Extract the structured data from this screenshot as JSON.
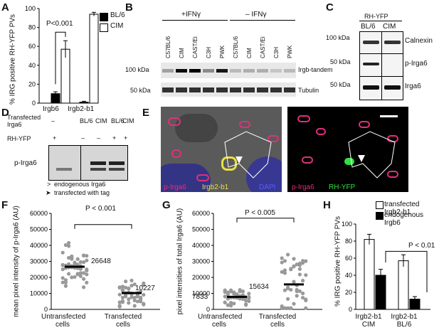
{
  "panels": {
    "A": {
      "label": "A",
      "ylabel": "% IRG positive RH-YFP PVs",
      "ticks": [
        "0",
        "20",
        "40",
        "60",
        "80",
        "100"
      ],
      "xcats": [
        "Irgb6",
        "Irgb2-b1"
      ],
      "legend": [
        "BL/6",
        "CIM"
      ],
      "sig": "P<0.001"
    },
    "B": {
      "label": "B",
      "cond1": "+IFNγ",
      "cond2": "– IFNγ",
      "lanes": [
        "C57BL/6",
        "CIM",
        "CAST/Ei",
        "C3H",
        "PWK",
        "C57BL/6",
        "CIM",
        "CAST/Ei",
        "C3H",
        "PWK"
      ],
      "mw1": "100 kDa",
      "mw2": "50 kDa",
      "blot1": "Irgb-tandem",
      "blot2": "Tubulin"
    },
    "C": {
      "label": "C",
      "header": "RH-YFP",
      "lanes": [
        "BL/6",
        "CIM"
      ],
      "mw": [
        "100 kDa",
        "50 kDa",
        "50 kDa"
      ],
      "blots": [
        "Calnexin",
        "p-Irga6",
        "Irga6"
      ]
    },
    "D": {
      "label": "D",
      "row1": "Transfected Irga6",
      "row1_vals": [
        "–",
        "BL/6",
        "CIM",
        "BL/6",
        "CIM"
      ],
      "row2": "RH-YFP",
      "row2_vals": [
        "+",
        "–",
        "–",
        "+",
        "+"
      ],
      "blot": "p-Irga6",
      "legend1": "endogenous Irga6",
      "legend2": "transfected with tag",
      "open_arrow": ">",
      "filled_arrow": "➤"
    },
    "E": {
      "label": "E",
      "left_labels": [
        "p-Irga6",
        "Irgb2-b1",
        "DAPI"
      ],
      "right_labels": [
        "p-Irga6",
        "RH-YFP"
      ]
    },
    "F": {
      "label": "F",
      "ylabel": "mean pixel intensity of p-Irga6 (AU)",
      "ticks": [
        "0",
        "10000",
        "20000",
        "30000",
        "40000",
        "50000",
        "60000"
      ],
      "groups": [
        "Untransfected cells",
        "Transfected cells"
      ],
      "medians": [
        "26648",
        "10227"
      ],
      "sig": "P < 0.001"
    },
    "G": {
      "label": "G",
      "ylabel": "pixel intensities of total Irga6 (AU)",
      "ticks": [
        "0",
        "10000",
        "20000",
        "30000",
        "40000",
        "50000",
        "60000"
      ],
      "groups": [
        "Untransfected cells",
        "Transfected cells"
      ],
      "medians": [
        "7833",
        "15634"
      ],
      "sig": "P < 0.005"
    },
    "H": {
      "label": "H",
      "ylabel": "% IRG positive RH-YFP PVs",
      "ticks": [
        "0",
        "20",
        "40",
        "60",
        "80",
        "100"
      ],
      "legend": [
        "transfected Irgb2-b1",
        "endogenous Irgb6"
      ],
      "groups": [
        "Irgb2-b1 CIM",
        "Irgb2-b1 BL/6"
      ],
      "sig": "P < 0.01"
    }
  },
  "chart_data": [
    {
      "type": "bar",
      "panel": "A",
      "categories": [
        "Irgb6",
        "Irgb2-b1"
      ],
      "series": [
        {
          "name": "BL/6",
          "values": [
            10,
            1
          ],
          "color": "#000000"
        },
        {
          "name": "CIM",
          "values": [
            57,
            94
          ],
          "color": "#ffffff"
        }
      ],
      "errors": [
        [
          2,
          1
        ],
        [
          9,
          2
        ]
      ],
      "ylim": [
        0,
        100
      ]
    },
    {
      "type": "scatter",
      "panel": "F",
      "categories": [
        "Untransfected cells",
        "Transfected cells"
      ],
      "medians": [
        26648,
        10227
      ],
      "ylim": [
        0,
        60000
      ]
    },
    {
      "type": "scatter",
      "panel": "G",
      "categories": [
        "Untransfected cells",
        "Transfected cells"
      ],
      "medians": [
        7833,
        15634
      ],
      "ylim": [
        0,
        60000
      ]
    },
    {
      "type": "bar",
      "panel": "H",
      "categories": [
        "Irgb2-b1 CIM",
        "Irgb2-b1 BL/6"
      ],
      "series": [
        {
          "name": "transfected Irgb2-b1",
          "values": [
            82,
            57
          ],
          "color": "#ffffff"
        },
        {
          "name": "endogenous Irgb6",
          "values": [
            40,
            12
          ],
          "color": "#000000"
        }
      ],
      "errors": [
        [
          6,
          7
        ],
        [
          7,
          3
        ]
      ],
      "ylim": [
        0,
        100
      ]
    }
  ]
}
